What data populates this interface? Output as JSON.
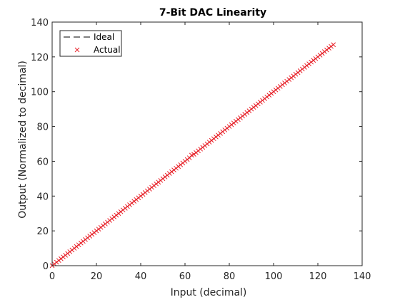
{
  "chart_data": {
    "type": "line",
    "title": "7-Bit DAC Linearity",
    "xlabel": "Input (decimal)",
    "ylabel": "Output (Normalized to decimal)",
    "xlim": [
      0,
      140
    ],
    "ylim": [
      0,
      140
    ],
    "xticks": [
      0,
      20,
      40,
      60,
      80,
      100,
      120,
      140
    ],
    "yticks": [
      0,
      20,
      40,
      60,
      80,
      100,
      120,
      140
    ],
    "xtick_labels": [
      "0",
      "20",
      "40",
      "60",
      "80",
      "100",
      "120",
      "140"
    ],
    "ytick_labels": [
      "0",
      "20",
      "40",
      "60",
      "80",
      "100",
      "120",
      "140"
    ],
    "grid": false,
    "legend_position": "top-left",
    "series": [
      {
        "name": "Ideal",
        "style": "dashed-line",
        "color": "#000000",
        "x": [
          0,
          127
        ],
        "y": [
          0,
          127
        ]
      },
      {
        "name": "Actual",
        "style": "x-marker",
        "color": "#e8222a",
        "x": [
          0,
          1,
          2,
          3,
          4,
          5,
          6,
          7,
          8,
          9,
          10,
          11,
          12,
          13,
          14,
          15,
          16,
          17,
          18,
          19,
          20,
          21,
          22,
          23,
          24,
          25,
          26,
          27,
          28,
          29,
          30,
          31,
          32,
          33,
          34,
          35,
          36,
          37,
          38,
          39,
          40,
          41,
          42,
          43,
          44,
          45,
          46,
          47,
          48,
          49,
          50,
          51,
          52,
          53,
          54,
          55,
          56,
          57,
          58,
          59,
          60,
          61,
          62,
          63,
          64,
          65,
          66,
          67,
          68,
          69,
          70,
          71,
          72,
          73,
          74,
          75,
          76,
          77,
          78,
          79,
          80,
          81,
          82,
          83,
          84,
          85,
          86,
          87,
          88,
          89,
          90,
          91,
          92,
          93,
          94,
          95,
          96,
          97,
          98,
          99,
          100,
          101,
          102,
          103,
          104,
          105,
          106,
          107,
          108,
          109,
          110,
          111,
          112,
          113,
          114,
          115,
          116,
          117,
          118,
          119,
          120,
          121,
          122,
          123,
          124,
          125,
          126,
          127
        ],
        "y": [
          0,
          1,
          2,
          3,
          4,
          5,
          6,
          7,
          8,
          9,
          10,
          11,
          12,
          13,
          14,
          15,
          16,
          17,
          18,
          19,
          20,
          21,
          22,
          23,
          24,
          25,
          26,
          27,
          28,
          29,
          30,
          31,
          32,
          33,
          34,
          35,
          36,
          37,
          38,
          39,
          40,
          41,
          42,
          43,
          44,
          45,
          46,
          47,
          48,
          49,
          50,
          51,
          52,
          53,
          54,
          55,
          56,
          57,
          58,
          59,
          60,
          61,
          62,
          63.5,
          64,
          65,
          66,
          67,
          68,
          69,
          70,
          71,
          72,
          73,
          74,
          75,
          76,
          77,
          78,
          79,
          80,
          81,
          82,
          83,
          84,
          85,
          86,
          87,
          88,
          89,
          90,
          91,
          92,
          93,
          94,
          95,
          96,
          97,
          98,
          99,
          100,
          101,
          102,
          103,
          104,
          105,
          106,
          107,
          108,
          109,
          110,
          111,
          112,
          113,
          114,
          115,
          116,
          117,
          118,
          119,
          120,
          121,
          122,
          123,
          124,
          125,
          126,
          127
        ]
      }
    ]
  }
}
